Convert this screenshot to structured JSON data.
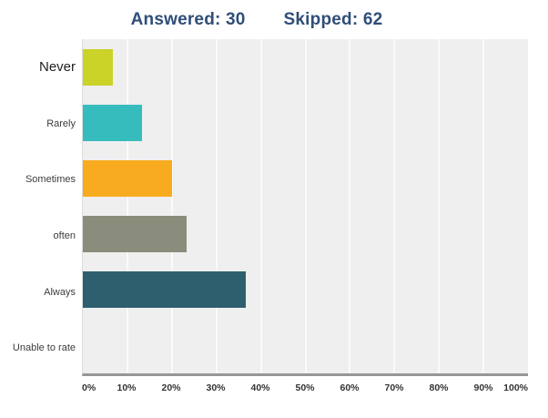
{
  "header": {
    "answered": "Answered: 30",
    "skipped": "Skipped: 62",
    "text_color": "#2f4e78"
  },
  "chart_data": {
    "type": "bar",
    "orientation": "horizontal",
    "categories": [
      "Never",
      "Rarely",
      "Sometimes",
      "often",
      "Always",
      "Unable to rate"
    ],
    "values": [
      6.67,
      13.33,
      20,
      23.33,
      36.67,
      0
    ],
    "value_unit": "percent",
    "series_colors": [
      "#cbd228",
      "#37bcbd",
      "#f8ab1e",
      "#8a8d7b",
      "#2e5f6e",
      "#cccccc"
    ],
    "x_ticks": [
      "0%",
      "10%",
      "20%",
      "30%",
      "40%",
      "50%",
      "60%",
      "70%",
      "80%",
      "90%",
      "100%"
    ],
    "xlim": [
      0,
      100
    ],
    "grid": true,
    "legend": "none",
    "plot_background": "#efefef",
    "gridline_color": "#fafafa",
    "axis_line_color": "#979797"
  }
}
